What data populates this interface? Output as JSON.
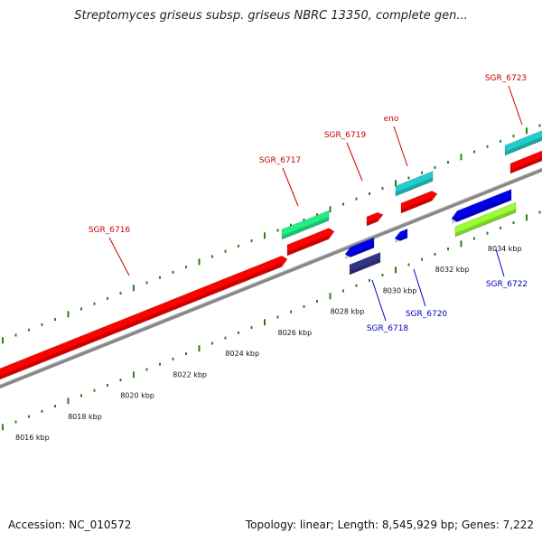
{
  "title": "Streptomyces griseus subsp. griseus NBRC 13350, complete gen...",
  "footer": {
    "accession": "Accession: NC_010572",
    "topology": "Topology: linear; Length: 8,545,929 bp; Genes: 7,222"
  },
  "colors": {
    "backbone": "#888888",
    "tick": "#2e7d1a",
    "forward_label": "#cc0000",
    "reverse_label": "#0000bb"
  },
  "scale_labels": [
    "8016 kbp",
    "8018 kbp",
    "8020 kbp",
    "8022 kbp",
    "8024 kbp",
    "8026 kbp",
    "8028 kbp",
    "8030 kbp",
    "8032 kbp",
    "8034 kbp"
  ],
  "genes": [
    {
      "name": "SGR_6716",
      "strand": "forward",
      "color": "#ff0000"
    },
    {
      "name": "SGR_6717",
      "strand": "forward",
      "color": "#ff0000"
    },
    {
      "name": "SGR_6719",
      "strand": "forward",
      "color": "#ff0000"
    },
    {
      "name": "eno",
      "strand": "forward",
      "color": "#ff0000"
    },
    {
      "name": "SGR_6723",
      "strand": "forward",
      "color": "#ff0000"
    },
    {
      "name": "SGR_6718",
      "strand": "reverse",
      "color": "#0000ee"
    },
    {
      "name": "SGR_6720",
      "strand": "reverse",
      "color": "#0000ee"
    },
    {
      "name": "SGR_6722",
      "strand": "reverse",
      "color": "#0000ee"
    }
  ],
  "features": [
    {
      "name": "feature-green-1",
      "color": "#22ee88"
    },
    {
      "name": "feature-cyan-1",
      "color": "#22cccc"
    },
    {
      "name": "feature-cyan-2",
      "color": "#22cccc"
    },
    {
      "name": "feature-lime-1",
      "color": "#99ff33"
    },
    {
      "name": "feature-navy-1",
      "color": "#333388"
    }
  ]
}
